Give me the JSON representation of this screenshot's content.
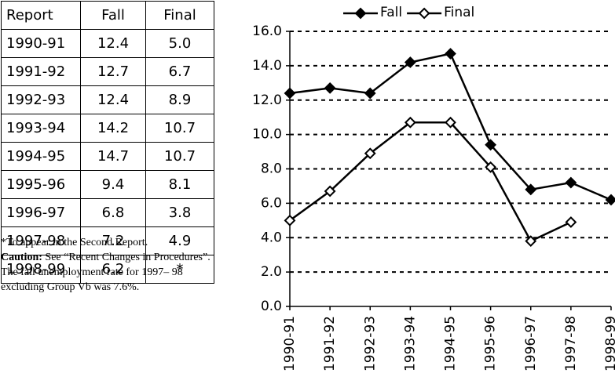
{
  "table": {
    "header": [
      "Report",
      "Fall",
      "Final"
    ],
    "rows": [
      [
        "1990-91",
        "12.4",
        "5.0"
      ],
      [
        "1991-92",
        "12.7",
        "6.7"
      ],
      [
        "1992-93",
        "12.4",
        "8.9"
      ],
      [
        "1993-94",
        "14.2",
        "10.7"
      ],
      [
        "1994-95",
        "14.7",
        "10.7"
      ],
      [
        "1995-96",
        "9.4",
        "8.1"
      ],
      [
        "1996-97",
        "6.8",
        "3.8"
      ],
      [
        "1997-98",
        "7.2",
        "4.9"
      ],
      [
        "1998-99",
        "6.2",
        "*"
      ]
    ]
  },
  "footnote": {
    "note": "*To appear in the Second Report.",
    "caution_label": "Caution:",
    "caution_text": "See “Recent Changes in Procedures”. The fall unemployment rate for 1997– 98 excluding Group Vb was 7.6%."
  },
  "chart_data": {
    "type": "line",
    "categories": [
      "1990-91",
      "1991-92",
      "1992-93",
      "1993-94",
      "1994-95",
      "1995-96",
      "1996-97",
      "1997-98",
      "1998-99"
    ],
    "series": [
      {
        "name": "Fall",
        "color": "#000000",
        "marker": "filled",
        "values": [
          12.4,
          12.7,
          12.4,
          14.2,
          14.7,
          9.4,
          6.8,
          7.2,
          6.2
        ]
      },
      {
        "name": "Final",
        "color": "#000000",
        "marker": "hollow",
        "values": [
          5.0,
          6.7,
          8.9,
          10.7,
          10.7,
          8.1,
          3.8,
          4.9,
          null
        ]
      }
    ],
    "ylim": [
      0,
      16
    ],
    "yticks": [
      {
        "value": 0,
        "label": "0.0"
      },
      {
        "value": 2,
        "label": "2.0"
      },
      {
        "value": 4,
        "label": "4.0"
      },
      {
        "value": 6,
        "label": "6.0"
      },
      {
        "value": 8,
        "label": "8.0"
      },
      {
        "value": 10,
        "label": "10.0"
      },
      {
        "value": 12,
        "label": "12.0"
      },
      {
        "value": 14,
        "label": "14.0"
      },
      {
        "value": 16,
        "label": "16.0"
      }
    ],
    "grid": true,
    "legend": "top"
  }
}
